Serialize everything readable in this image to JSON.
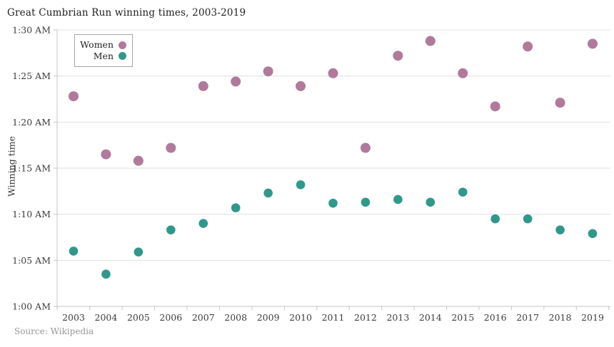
{
  "background": "#ffffff",
  "chart_data": {
    "type": "scatter",
    "title": "Great Cumbrian Run winning times, 2003-2019",
    "ylabel": "Winning time",
    "source": "Source: Wikipedia",
    "grid": "horizontal",
    "legend_position": "top-left-inside",
    "x": [
      2003,
      2004,
      2005,
      2006,
      2007,
      2008,
      2009,
      2010,
      2011,
      2012,
      2013,
      2014,
      2015,
      2016,
      2017,
      2018,
      2019
    ],
    "y_ticks": [
      "1:00 AM",
      "1:05 AM",
      "1:10 AM",
      "1:15 AM",
      "1:20 AM",
      "1:25 AM",
      "1:30 AM"
    ],
    "ylim_minutes_after_1am": [
      0,
      30
    ],
    "series": [
      {
        "name": "Women",
        "color": "#b07a9b",
        "values_minutes_after_1am": [
          22.8,
          16.5,
          15.8,
          17.2,
          23.9,
          24.4,
          25.5,
          23.9,
          25.3,
          17.2,
          27.2,
          28.8,
          25.3,
          21.7,
          28.2,
          22.1,
          28.5
        ]
      },
      {
        "name": "Men",
        "color": "#30988b",
        "values_minutes_after_1am": [
          6.0,
          3.5,
          5.9,
          8.3,
          9.0,
          10.7,
          12.3,
          13.2,
          11.2,
          11.3,
          11.6,
          11.3,
          12.4,
          9.5,
          9.5,
          8.3,
          7.9
        ]
      }
    ]
  }
}
